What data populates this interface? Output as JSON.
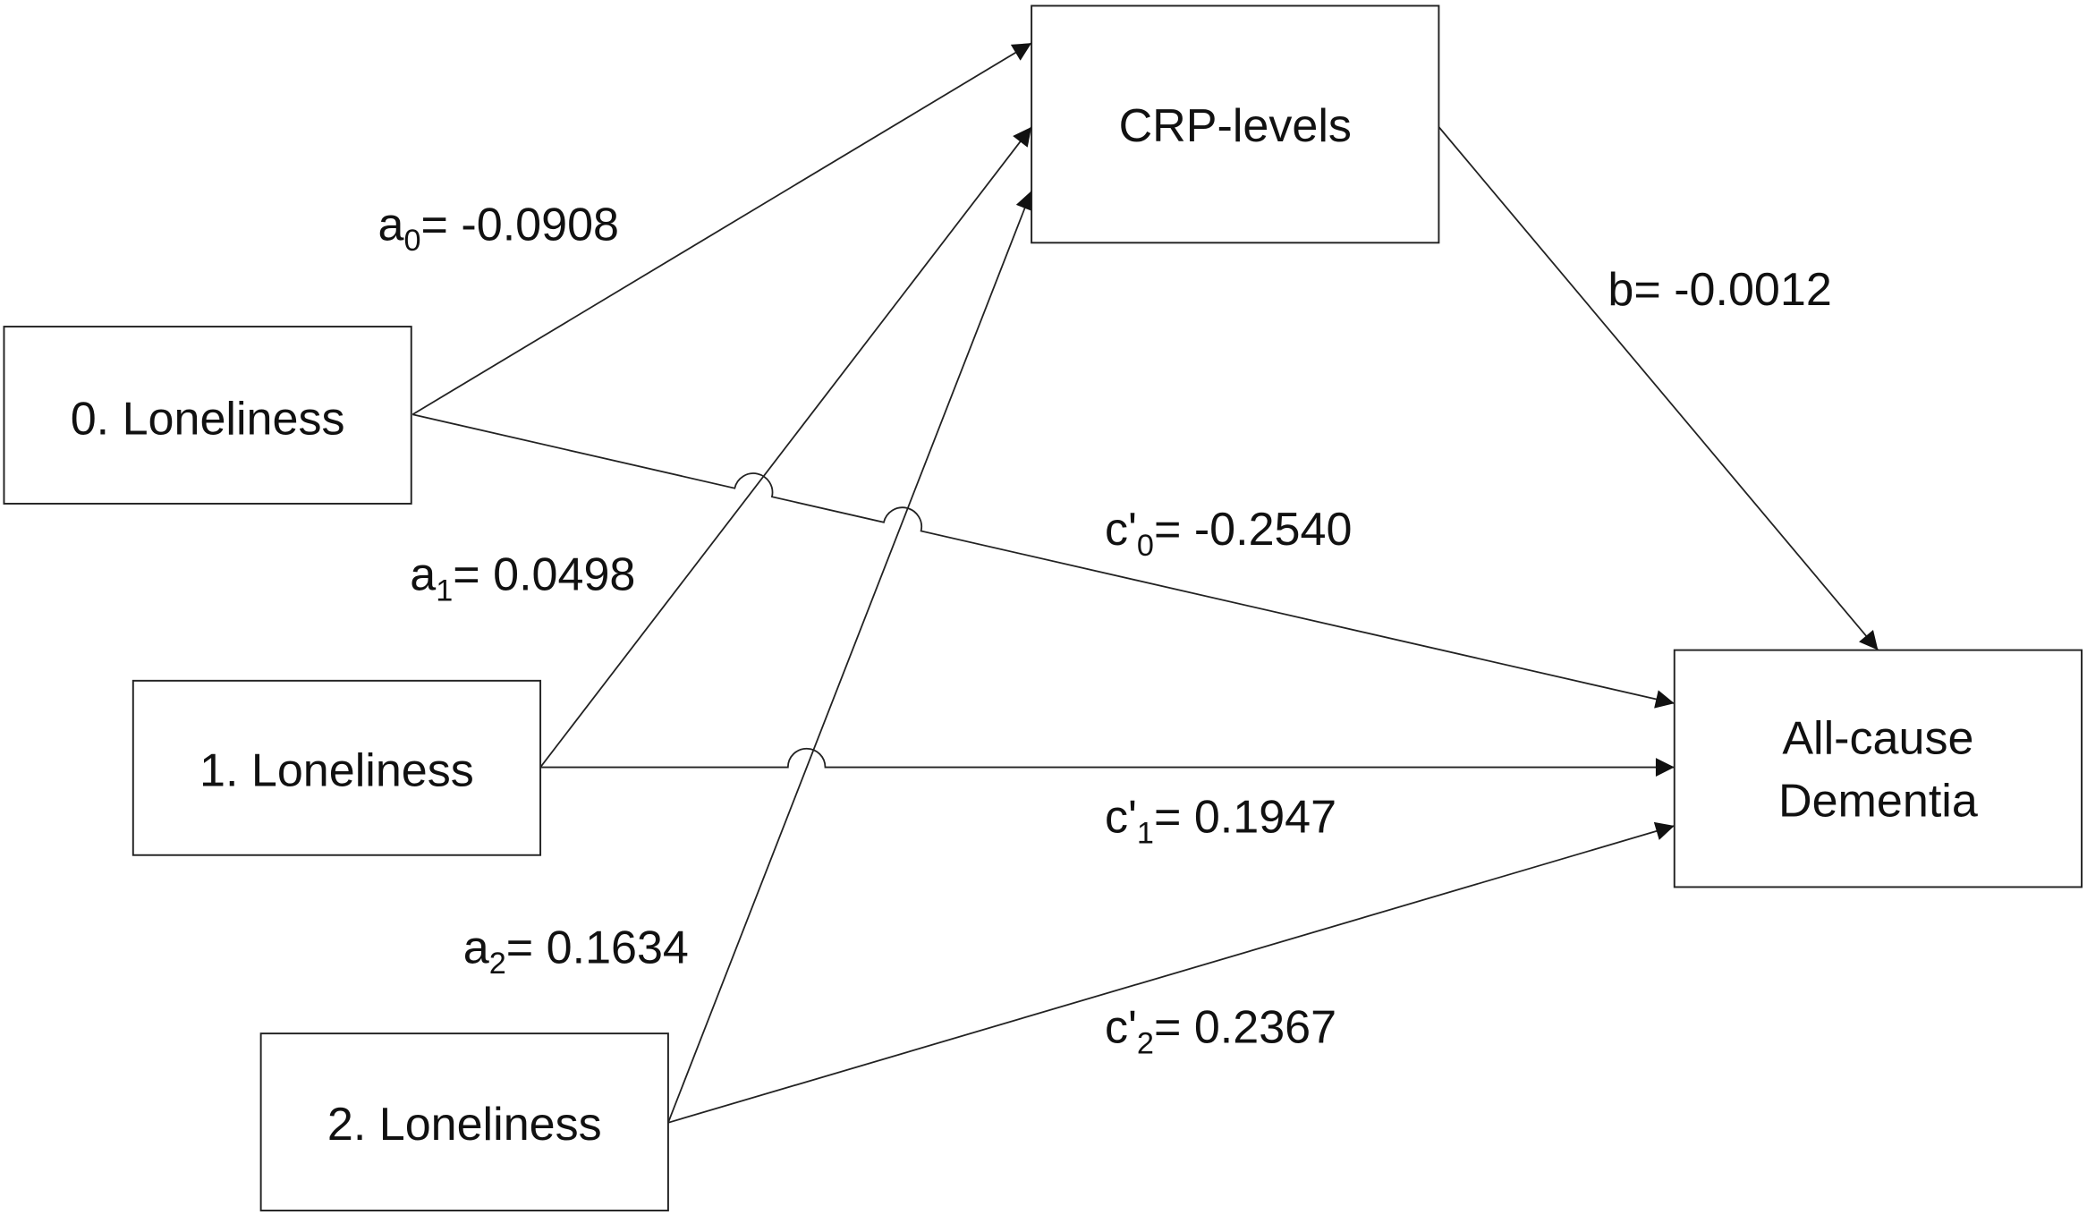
{
  "nodes": {
    "crp": "CRP-levels",
    "lon0": "0. Loneliness",
    "lon1": "1. Loneliness",
    "lon2": "2. Loneliness",
    "dementia_line1": "All-cause",
    "dementia_line2": "Dementia"
  },
  "paths": {
    "a0": {
      "var": "a",
      "sub": "0",
      "value": "= -0.0908"
    },
    "a1": {
      "var": "a",
      "sub": "1",
      "value": "= 0.0498"
    },
    "a2": {
      "var": "a",
      "sub": "2",
      "value": "= 0.1634"
    },
    "b": {
      "var": "b",
      "value": "= -0.0012"
    },
    "c0": {
      "var": "c'",
      "sub": "0",
      "value": "= -0.2540"
    },
    "c1": {
      "var": "c'",
      "sub": "1",
      "value": "= 0.1947"
    },
    "c2": {
      "var": "c'",
      "sub": "2",
      "value": "= 0.2367"
    }
  }
}
